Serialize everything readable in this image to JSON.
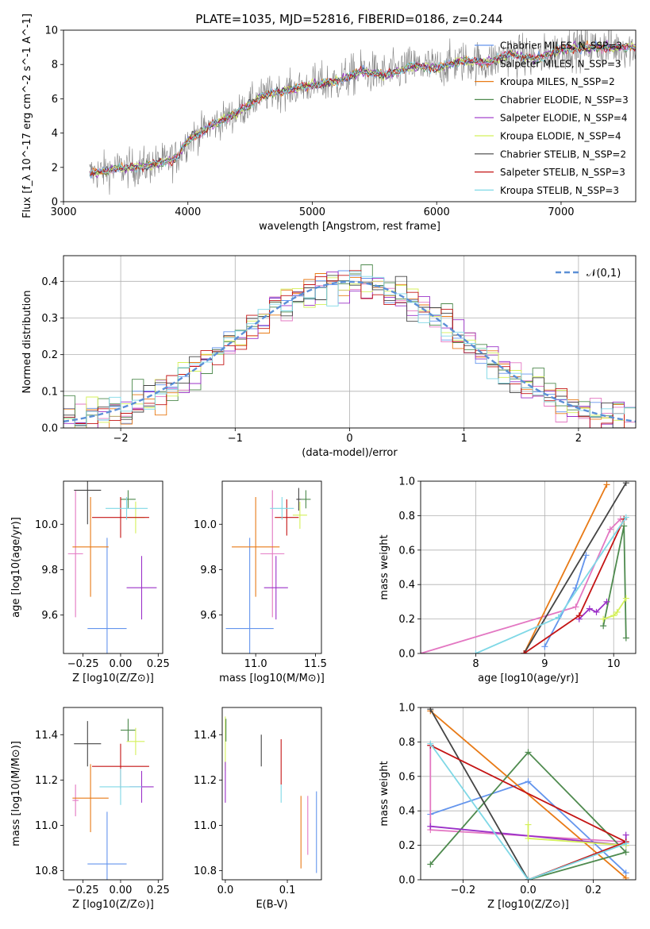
{
  "chart_data": [
    {
      "id": "spectrum",
      "type": "line",
      "title": "PLATE=1035, MJD=52816, FIBERID=0186, z=0.244",
      "xlabel": "wavelength [Angstrom, rest frame]",
      "ylabel": "Flux [f_λ 10^-17 erg cm^-2 s^-1 A^-1]",
      "xlim": [
        3000,
        7600
      ],
      "ylim": [
        0,
        10
      ],
      "xticks": [
        "3000",
        "4000",
        "5000",
        "6000",
        "7000"
      ],
      "yticks": [
        "0",
        "2",
        "4",
        "6",
        "8",
        "10"
      ],
      "legend_position": "top-right",
      "series": [
        {
          "name": "Chabrier MILES, N_SSP=3",
          "color": "#6495ed"
        },
        {
          "name": "Salpeter MILES, N_SSP=3",
          "color": "#e377c2"
        },
        {
          "name": "Kroupa MILES, N_SSP=2",
          "color": "#e87a16"
        },
        {
          "name": "Chabrier ELODIE, N_SSP=3",
          "color": "#4e8a4e"
        },
        {
          "name": "Salpeter ELODIE, N_SSP=4",
          "color": "#9b30c8"
        },
        {
          "name": "Kroupa ELODIE, N_SSP=4",
          "color": "#d4f05a"
        },
        {
          "name": "Chabrier STELIB, N_SSP=2",
          "color": "#444444"
        },
        {
          "name": "Salpeter STELIB, N_SSP=3",
          "color": "#c41414"
        },
        {
          "name": "Kroupa STELIB, N_SSP=3",
          "color": "#7fd8e6"
        }
      ],
      "continuum": {
        "x": [
          3200,
          3400,
          3600,
          3800,
          3900,
          4000,
          4200,
          4400,
          4600,
          4800,
          5000,
          5200,
          5400,
          5600,
          5800,
          6000,
          6200,
          6400,
          6600,
          6800,
          7000,
          7200
        ],
        "y": [
          1.6,
          1.9,
          2.0,
          2.3,
          2.5,
          3.6,
          4.5,
          5.2,
          6.2,
          6.5,
          6.8,
          7.0,
          7.6,
          7.4,
          7.9,
          7.8,
          8.2,
          8.1,
          8.6,
          8.3,
          8.9,
          9.0
        ]
      }
    },
    {
      "id": "residuals",
      "type": "bar",
      "xlabel": "(data-model)/error",
      "ylabel": "Normed distribution",
      "xlim": [
        -2.5,
        2.5
      ],
      "ylim": [
        0,
        0.47
      ],
      "xticks": [
        "−2",
        "−1",
        "0",
        "1",
        "2"
      ],
      "yticks": [
        "0.0",
        "0.1",
        "0.2",
        "0.3",
        "0.4"
      ],
      "legend_position": "top-right",
      "reference_label": "𝒩(0,1)",
      "reference_color": "#5b8fd6"
    },
    {
      "id": "age-vs-Z",
      "type": "scatter",
      "xlabel": "Z [log10(Z/Z⊙)]",
      "ylabel": "age [log10(age/yr)]",
      "xlim": [
        -0.38,
        0.28
      ],
      "ylim": [
        9.43,
        10.19
      ],
      "xticks": [
        "−0.25",
        "0.00",
        "0.25"
      ],
      "yticks": [
        "9.6",
        "9.8",
        "10.0"
      ],
      "points": [
        {
          "x": -0.09,
          "y": 9.54,
          "xerr": 0.13,
          "yerr": 0.4,
          "color": "#6495ed"
        },
        {
          "x": -0.3,
          "y": 9.87,
          "xerr": 0.05,
          "yerr": 0.28,
          "color": "#e377c2"
        },
        {
          "x": -0.2,
          "y": 9.9,
          "xerr": 0.12,
          "yerr": 0.22,
          "color": "#e87a16"
        },
        {
          "x": 0.05,
          "y": 10.11,
          "xerr": 0.05,
          "yerr": 0.04,
          "color": "#4e8a4e"
        },
        {
          "x": 0.14,
          "y": 9.72,
          "xerr": 0.1,
          "yerr": 0.14,
          "color": "#9b30c8"
        },
        {
          "x": 0.1,
          "y": 10.03,
          "xerr": 0.06,
          "yerr": 0.07,
          "color": "#d4f05a"
        },
        {
          "x": -0.22,
          "y": 10.15,
          "xerr": 0.09,
          "yerr": 0.15,
          "color": "#444444"
        },
        {
          "x": 0.0,
          "y": 10.03,
          "xerr": 0.19,
          "yerr": 0.09,
          "color": "#c41414"
        },
        {
          "x": 0.04,
          "y": 10.07,
          "xerr": 0.14,
          "yerr": 0.05,
          "color": "#7fd8e6"
        }
      ]
    },
    {
      "id": "age-vs-mass",
      "type": "scatter",
      "xlabel": "mass [log10(M/M⊙)]",
      "xlim": [
        10.72,
        11.55
      ],
      "ylim": [
        9.43,
        10.19
      ],
      "xticks": [
        "11.0",
        "11.5"
      ],
      "yticks": [
        "9.6",
        "9.8",
        "10.0"
      ],
      "points": [
        {
          "x": 10.95,
          "y": 9.54,
          "xerr": 0.2,
          "yerr": 0.4,
          "color": "#6495ed"
        },
        {
          "x": 11.14,
          "y": 9.87,
          "xerr": 0.1,
          "yerr": 0.28,
          "color": "#e377c2"
        },
        {
          "x": 11.0,
          "y": 9.9,
          "xerr": 0.2,
          "yerr": 0.22,
          "color": "#e87a16"
        },
        {
          "x": 11.42,
          "y": 10.11,
          "xerr": 0.04,
          "yerr": 0.04,
          "color": "#4e8a4e"
        },
        {
          "x": 11.17,
          "y": 9.72,
          "xerr": 0.1,
          "yerr": 0.14,
          "color": "#9b30c8"
        },
        {
          "x": 11.37,
          "y": 10.04,
          "xerr": 0.06,
          "yerr": 0.06,
          "color": "#d4f05a"
        },
        {
          "x": 11.36,
          "y": 10.11,
          "xerr": 0.02,
          "yerr": 0.05,
          "color": "#444444"
        },
        {
          "x": 11.26,
          "y": 10.03,
          "xerr": 0.1,
          "yerr": 0.08,
          "color": "#c41414"
        },
        {
          "x": 11.22,
          "y": 10.07,
          "xerr": 0.1,
          "yerr": 0.05,
          "color": "#7fd8e6"
        }
      ]
    },
    {
      "id": "massweight-vs-age",
      "type": "line",
      "xlabel": "age [log10(age/yr)]",
      "ylabel": "mass weight",
      "xlim": [
        7.2,
        10.32
      ],
      "ylim": [
        0,
        1
      ],
      "xticks": [
        "8",
        "9",
        "10"
      ],
      "yticks": [
        "0.0",
        "0.2",
        "0.4",
        "0.6",
        "0.8",
        "1.0"
      ],
      "series": [
        {
          "color": "#6495ed",
          "x": [
            9.0,
            9.45,
            9.6
          ],
          "y": [
            0.04,
            0.38,
            0.57
          ]
        },
        {
          "color": "#e377c2",
          "x": [
            7.2,
            9.45,
            9.95,
            10.1
          ],
          "y": [
            0.0,
            0.27,
            0.72,
            0.78
          ]
        },
        {
          "color": "#e87a16",
          "x": [
            8.7,
            9.9
          ],
          "y": [
            0.0,
            0.98
          ]
        },
        {
          "color": "#4e8a4e",
          "x": [
            9.85,
            10.15,
            10.18
          ],
          "y": [
            0.16,
            0.74,
            0.09
          ]
        },
        {
          "color": "#9b30c8",
          "x": [
            9.5,
            9.65,
            9.75,
            9.9
          ],
          "y": [
            0.2,
            0.26,
            0.24,
            0.3
          ]
        },
        {
          "color": "#d4f05a",
          "x": [
            9.85,
            10.0,
            10.05,
            10.18
          ],
          "y": [
            0.2,
            0.22,
            0.24,
            0.32
          ]
        },
        {
          "color": "#444444",
          "x": [
            8.7,
            10.18
          ],
          "y": [
            0.0,
            0.99
          ]
        },
        {
          "color": "#c41414",
          "x": [
            8.7,
            9.5,
            10.15
          ],
          "y": [
            0.0,
            0.22,
            0.78
          ]
        },
        {
          "color": "#7fd8e6",
          "x": [
            8.0,
            9.2,
            10.18
          ],
          "y": [
            0.0,
            0.21,
            0.79
          ]
        }
      ]
    },
    {
      "id": "mass-vs-Z",
      "type": "scatter",
      "xlabel": "Z [log10(Z/Z⊙)]",
      "ylabel": "mass [log10(M/M⊙)]",
      "xlim": [
        -0.38,
        0.28
      ],
      "ylim": [
        10.76,
        11.52
      ],
      "xticks": [
        "−0.25",
        "0.00",
        "0.25"
      ],
      "yticks": [
        "10.8",
        "11.0",
        "11.2",
        "11.4"
      ],
      "points": [
        {
          "x": -0.09,
          "y": 10.83,
          "xerr": 0.13,
          "yerr": 0.23,
          "color": "#6495ed"
        },
        {
          "x": -0.3,
          "y": 11.11,
          "xerr": 0.02,
          "yerr": 0.07,
          "color": "#e377c2"
        },
        {
          "x": -0.2,
          "y": 11.12,
          "xerr": 0.12,
          "yerr": 0.15,
          "color": "#e87a16"
        },
        {
          "x": 0.05,
          "y": 11.42,
          "xerr": 0.05,
          "yerr": 0.05,
          "color": "#4e8a4e"
        },
        {
          "x": 0.14,
          "y": 11.17,
          "xerr": 0.08,
          "yerr": 0.07,
          "color": "#9b30c8"
        },
        {
          "x": 0.1,
          "y": 11.37,
          "xerr": 0.06,
          "yerr": 0.06,
          "color": "#d4f05a"
        },
        {
          "x": -0.22,
          "y": 11.36,
          "xerr": 0.09,
          "yerr": 0.1,
          "color": "#444444"
        },
        {
          "x": 0.0,
          "y": 11.26,
          "xerr": 0.19,
          "yerr": 0.1,
          "color": "#c41414"
        },
        {
          "x": 0.0,
          "y": 11.17,
          "xerr": 0.14,
          "yerr": 0.08,
          "color": "#7fd8e6"
        }
      ]
    },
    {
      "id": "mass-vs-ebv",
      "type": "scatter",
      "xlabel": "E(B-V)",
      "xlim": [
        -0.005,
        0.155
      ],
      "ylim": [
        10.76,
        11.52
      ],
      "xticks": [
        "0.0",
        "0.1"
      ],
      "yticks": [
        "10.8",
        "11.0",
        "11.2",
        "11.4"
      ],
      "points": [
        {
          "x": 0.0,
          "y": 11.36,
          "yerr": 0.12,
          "color": "#d4f05a"
        },
        {
          "x": 0.0,
          "y": 11.19,
          "yerr": 0.09,
          "color": "#9b30c8"
        },
        {
          "x": 0.001,
          "y": 11.42,
          "yerr": 0.05,
          "color": "#4e8a4e"
        },
        {
          "x": 0.058,
          "y": 11.33,
          "yerr": 0.07,
          "color": "#444444"
        },
        {
          "x": 0.09,
          "y": 11.28,
          "yerr": 0.1,
          "color": "#c41414"
        },
        {
          "x": 0.09,
          "y": 11.14,
          "yerr": 0.04,
          "color": "#7fd8e6"
        },
        {
          "x": 0.122,
          "y": 10.97,
          "yerr": 0.16,
          "color": "#e87a16"
        },
        {
          "x": 0.133,
          "y": 11.0,
          "yerr": 0.13,
          "color": "#e377c2"
        },
        {
          "x": 0.147,
          "y": 10.97,
          "yerr": 0.18,
          "color": "#6495ed"
        }
      ]
    },
    {
      "id": "massweight-vs-Z",
      "type": "line",
      "xlabel": "Z [log10(Z/Z⊙)]",
      "ylabel": "mass weight",
      "xlim": [
        -0.33,
        0.33
      ],
      "ylim": [
        0,
        1
      ],
      "xticks": [
        "−0.2",
        "0.0",
        "0.2"
      ],
      "yticks": [
        "0.0",
        "0.2",
        "0.4",
        "0.6",
        "0.8",
        "1.0"
      ],
      "series": [
        {
          "color": "#6495ed",
          "x": [
            -0.3,
            0.0,
            0.3
          ],
          "y": [
            0.38,
            0.57,
            0.04
          ]
        },
        {
          "color": "#e377c2",
          "x": [
            -0.3,
            -0.3,
            0.3
          ],
          "y": [
            0.78,
            0.29,
            0.22
          ]
        },
        {
          "color": "#e87a16",
          "x": [
            -0.3,
            0.3
          ],
          "y": [
            0.98,
            0.01
          ]
        },
        {
          "color": "#4e8a4e",
          "x": [
            -0.3,
            0.0,
            0.3,
            0.0
          ],
          "y": [
            0.09,
            0.74,
            0.16,
            0.0
          ]
        },
        {
          "color": "#9b30c8",
          "x": [
            -0.3,
            0.3,
            0.3
          ],
          "y": [
            0.31,
            0.2,
            0.26
          ]
        },
        {
          "color": "#d4f05a",
          "x": [
            0.0,
            0.0,
            0.3
          ],
          "y": [
            0.32,
            0.24,
            0.2
          ]
        },
        {
          "color": "#444444",
          "x": [
            -0.3,
            0.0
          ],
          "y": [
            0.99,
            0.0
          ]
        },
        {
          "color": "#c41414",
          "x": [
            -0.3,
            0.3,
            0.0
          ],
          "y": [
            0.78,
            0.22,
            0.0
          ]
        },
        {
          "color": "#7fd8e6",
          "x": [
            -0.3,
            0.0,
            0.3
          ],
          "y": [
            0.79,
            0.0,
            0.21
          ]
        }
      ]
    }
  ]
}
